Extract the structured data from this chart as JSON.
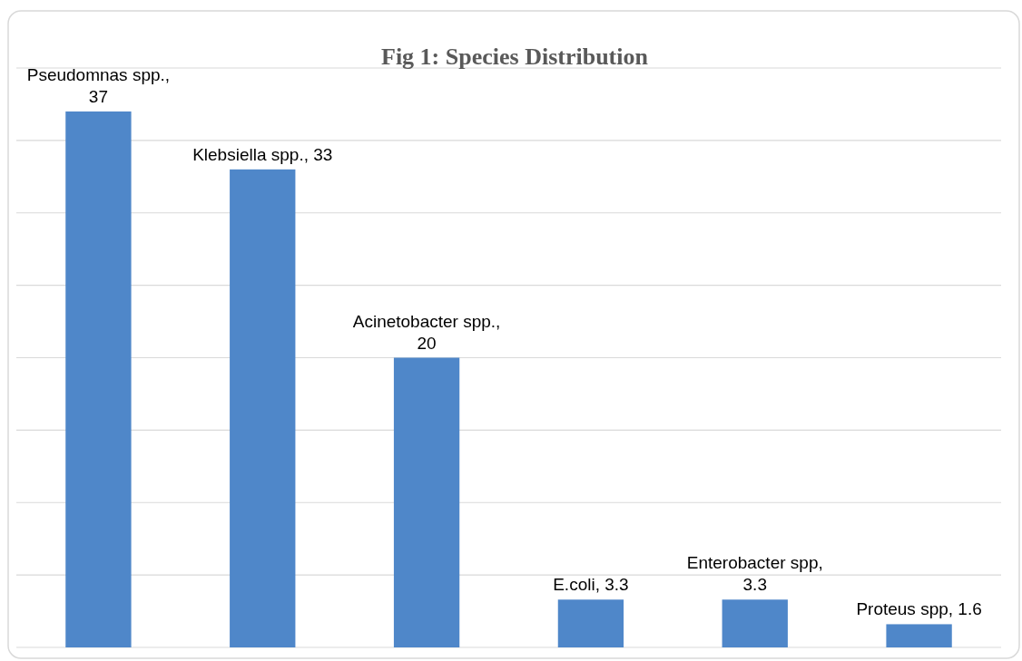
{
  "chart_data": {
    "type": "bar",
    "title": "Fig 1: Species Distribution",
    "categories": [
      null,
      null,
      null,
      null,
      null,
      null
    ],
    "values": [
      37,
      33,
      20,
      3.3,
      3.3,
      1.6
    ],
    "value_labels": [
      "Pseudomnas spp., 37",
      "Klebsiella spp., 33",
      "Acinetobacter spp., 20",
      "E.coli, 3.3",
      "Enterobacter spp, 3.3",
      "Proteus spp, 1.6"
    ],
    "color": "#4f87c9",
    "ylim": [
      0,
      40
    ],
    "yticks": [
      {
        "value": 0,
        "label": null
      },
      {
        "value": 5,
        "label": null
      },
      {
        "value": 10,
        "label": null
      },
      {
        "value": 15,
        "label": null
      },
      {
        "value": 20,
        "label": null
      },
      {
        "value": 25,
        "label": null
      },
      {
        "value": 30,
        "label": null
      },
      {
        "value": 35,
        "label": null
      },
      {
        "value": 40,
        "label": null
      }
    ],
    "grid": "y"
  }
}
